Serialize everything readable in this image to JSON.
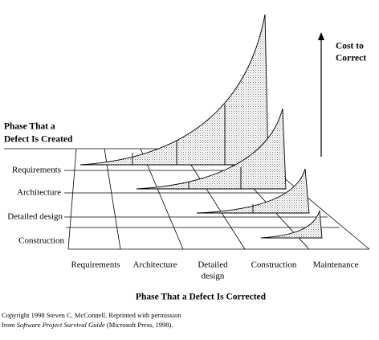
{
  "header": {
    "cost_label": [
      "Cost to",
      "Correct"
    ],
    "created_label": [
      "Phase That a",
      "Defect Is Created"
    ]
  },
  "rows": [
    "Requirements",
    "Architecture",
    "Detailed design",
    "Construction"
  ],
  "columns": [
    [
      "Requirements"
    ],
    [
      "Architecture"
    ],
    [
      "Detailed",
      "design"
    ],
    [
      "Construction"
    ],
    [
      "Maintenance"
    ]
  ],
  "corrected_label": "Phase That a Defect Is Corrected",
  "footer": {
    "line1": "Copyright 1998 Steven C. McConnell. Reprinted with permission",
    "line2_prefix": "from ",
    "line2_title": "Software Project Survival Guide",
    "line2_suffix": " (Microsoft Press, 1998)."
  }
}
